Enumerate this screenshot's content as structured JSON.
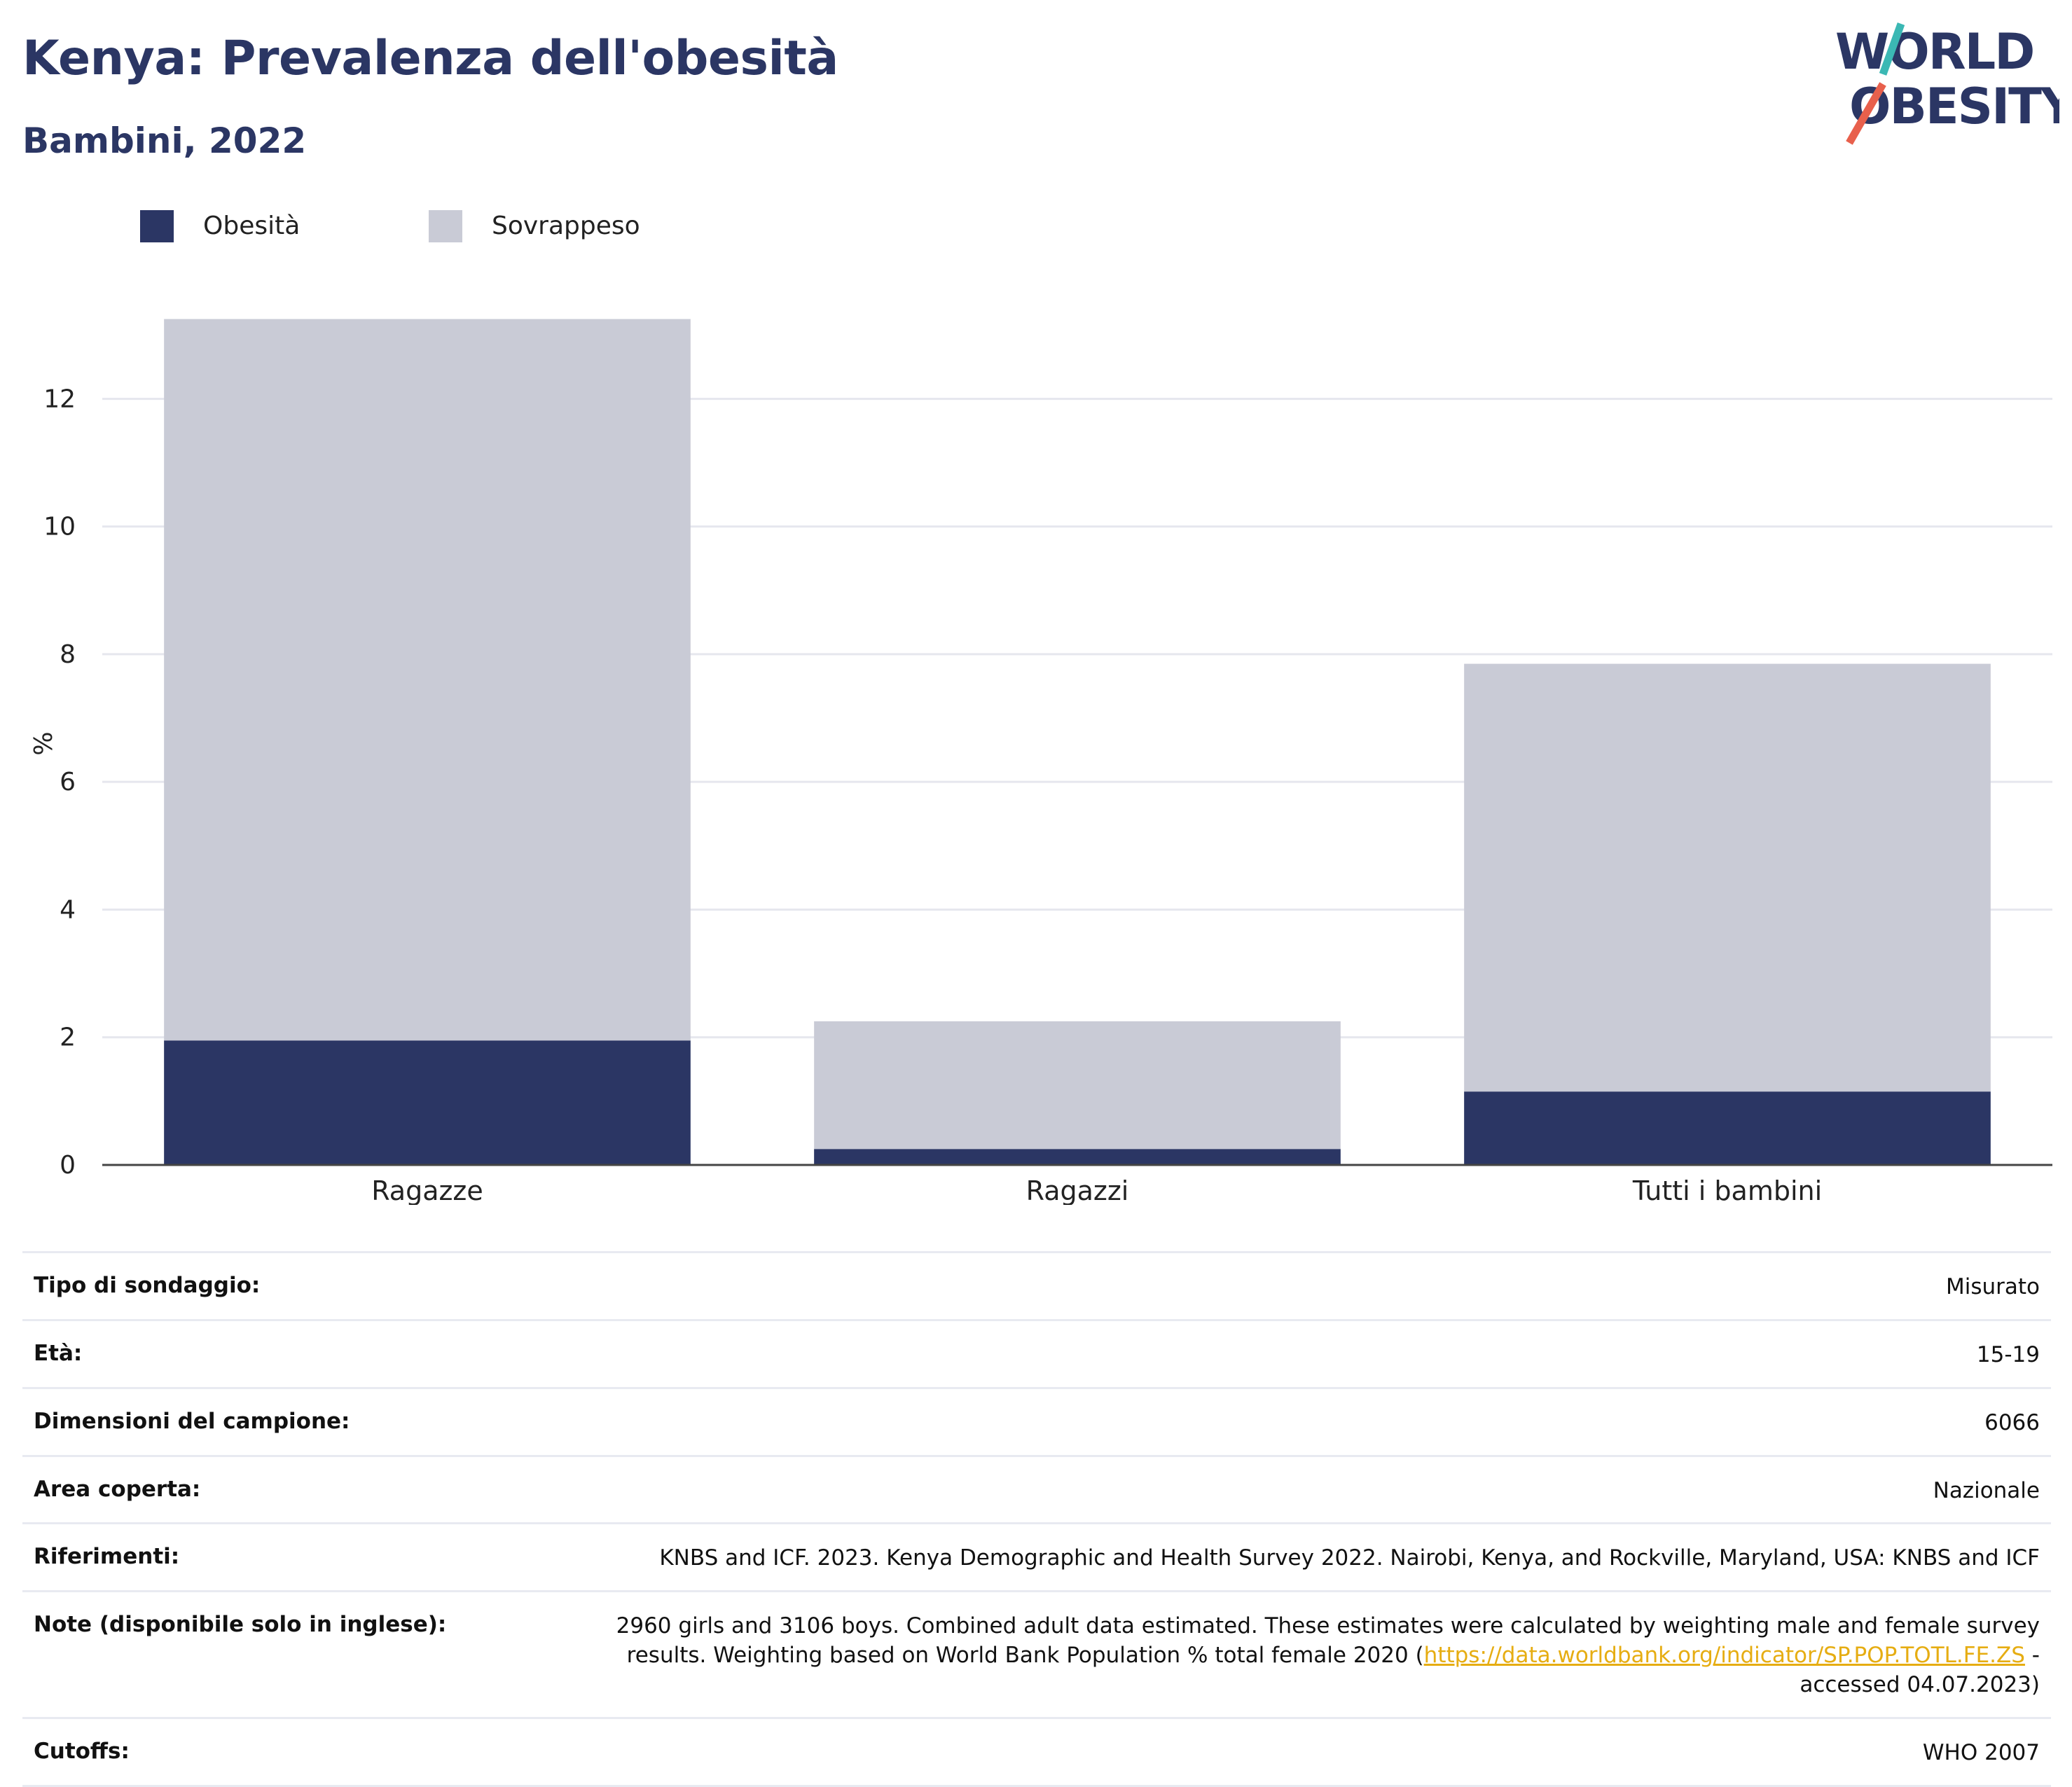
{
  "header": {
    "title": "Kenya: Prevalenza dell'obesità",
    "subtitle": "Bambini, 2022"
  },
  "logo": {
    "line1": "WORLD",
    "line2": "OBESITY",
    "text_color": "#2b3664",
    "accent_teal": "#3bb8b4",
    "accent_coral": "#e8604c"
  },
  "legend": [
    {
      "label": "Obesità",
      "color": "#2b3664"
    },
    {
      "label": "Sovrappeso",
      "color": "#c9cbd6"
    }
  ],
  "chart_data": {
    "type": "bar",
    "stacked": true,
    "title": "Kenya: Prevalenza dell'obesità",
    "subtitle": "Bambini, 2022",
    "categories": [
      "Ragazze",
      "Ragazzi",
      "Tutti i bambini"
    ],
    "series": [
      {
        "name": "Obesità",
        "color": "#2b3664",
        "values": [
          1.95,
          0.25,
          1.15
        ]
      },
      {
        "name": "Sovrappeso",
        "color": "#c9cbd6",
        "values": [
          11.3,
          2.0,
          6.7
        ]
      }
    ],
    "ylabel": "%",
    "xlabel": "",
    "ylim": [
      0,
      13.2
    ],
    "yticks": [
      0,
      2,
      4,
      6,
      8,
      10,
      12
    ],
    "grid": true,
    "legend_position": "top-left"
  },
  "info": [
    {
      "key": "Tipo di sondaggio:",
      "value": "Misurato"
    },
    {
      "key": "Età:",
      "value": "15-19"
    },
    {
      "key": "Dimensioni del campione:",
      "value": "6066"
    },
    {
      "key": "Area coperta:",
      "value": "Nazionale"
    },
    {
      "key": "Riferimenti:",
      "value": "KNBS and ICF. 2023. Kenya Demographic and Health Survey 2022. Nairobi, Kenya, and Rockville, Maryland, USA: KNBS and ICF"
    },
    {
      "key": "Note (disponibile solo in inglese):",
      "value_before": "2960 girls and 3106 boys. Combined adult data estimated. These estimates were calculated by weighting male and female survey results. Weighting based on World Bank Population % total female 2020 (",
      "link": "https://data.worldbank.org/indicator/SP.POP.TOTL.FE.ZS",
      "value_after": " - accessed 04.07.2023)"
    },
    {
      "key": "Cutoffs:",
      "value": "WHO 2007"
    }
  ]
}
